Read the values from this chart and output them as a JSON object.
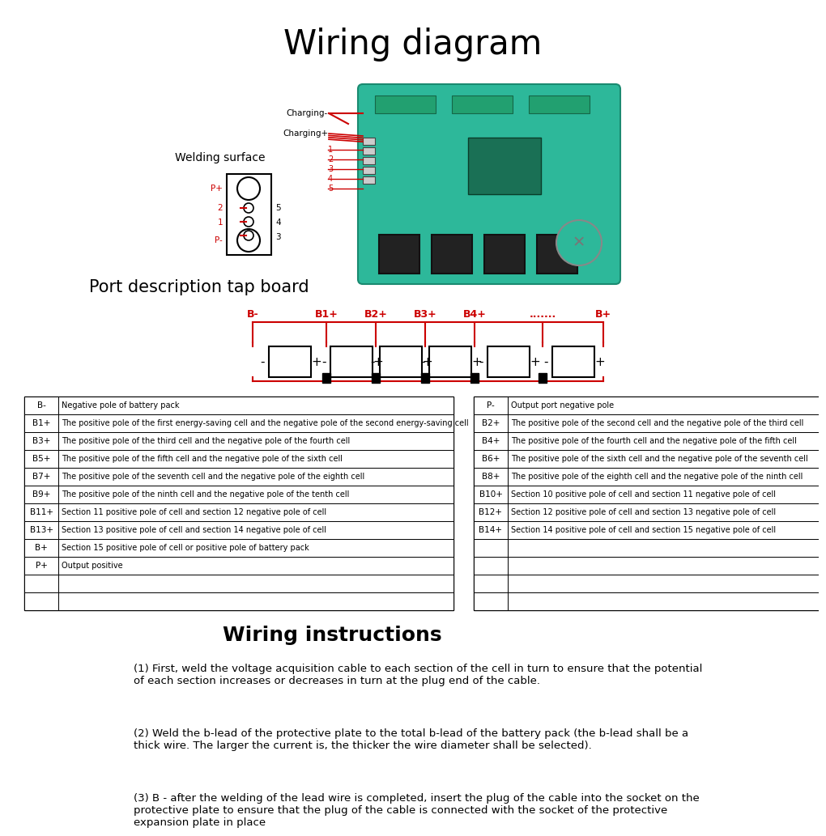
{
  "title": "Wiring diagram",
  "title_fontsize": 30,
  "subtitle": "Port description tap board",
  "subtitle_fontsize": 15,
  "wiring_instructions_title": "Wiring instructions",
  "bg_color": "#ffffff",
  "text_color": "#000000",
  "red_color": "#cc0000",
  "pcb_color": "#2db89a",
  "pcb_dark": "#1a8a70",
  "left_table": {
    "rows": [
      [
        "B-",
        "Negative pole of battery pack"
      ],
      [
        "B1+",
        "The positive pole of the first energy-saving cell and the negative pole of the second energy-saving cell"
      ],
      [
        "B3+",
        "The positive pole of the third cell and the negative pole of the fourth cell"
      ],
      [
        "B5+",
        "The positive pole of the fifth cell and the negative pole of the sixth cell"
      ],
      [
        "B7+",
        "The positive pole of the seventh cell and the negative pole of the eighth cell"
      ],
      [
        "B9+",
        "The positive pole of the ninth cell and the negative pole of the tenth cell"
      ],
      [
        "B11+",
        "Section 11 positive pole of cell and section 12 negative pole of cell"
      ],
      [
        "B13+",
        "Section 13 positive pole of cell and section 14 negative pole of cell"
      ],
      [
        "B+",
        "Section 15 positive pole of cell or positive pole of battery pack"
      ],
      [
        "P+",
        "Output positive"
      ],
      [
        "",
        ""
      ],
      [
        "",
        ""
      ]
    ]
  },
  "right_table": {
    "rows": [
      [
        "P-",
        "Output port negative pole"
      ],
      [
        "B2+",
        "The positive pole of the second cell and the negative pole of the third cell"
      ],
      [
        "B4+",
        "The positive pole of the fourth cell and the negative pole of the fifth cell"
      ],
      [
        "B6+",
        "The positive pole of the sixth cell and the negative pole of the seventh cell"
      ],
      [
        "B8+",
        "The positive pole of the eighth cell and the negative pole of the ninth cell"
      ],
      [
        "B10+",
        "Section 10 positive pole of cell and section 11 negative pole of cell"
      ],
      [
        "B12+",
        "Section 12 positive pole of cell and section 13 negative pole of cell"
      ],
      [
        "B14+",
        "Section 14 positive pole of cell and section 15 negative pole of cell"
      ],
      [
        "",
        ""
      ],
      [
        "",
        ""
      ],
      [
        "",
        ""
      ],
      [
        "",
        ""
      ]
    ]
  },
  "wiring_labels_top": [
    "B-",
    "B1+",
    "B2+",
    "B3+",
    "B4+",
    ".......",
    "B+"
  ],
  "instructions": [
    "(1) First, weld the voltage acquisition cable to each section of the cell in turn to ensure that the potential\nof each section increases or decreases in turn at the plug end of the cable.",
    "(2) Weld the b-lead of the protective plate to the total b-lead of the battery pack (the b-lead shall be a\nthick wire. The larger the current is, the thicker the wire diameter shall be selected).",
    "(3) B - after the welding of the lead wire is completed, insert the plug of the cable into the socket on the\nprotective plate to ensure that the plug of the cable is connected with the socket of the protective\nexpansion plate in place"
  ]
}
